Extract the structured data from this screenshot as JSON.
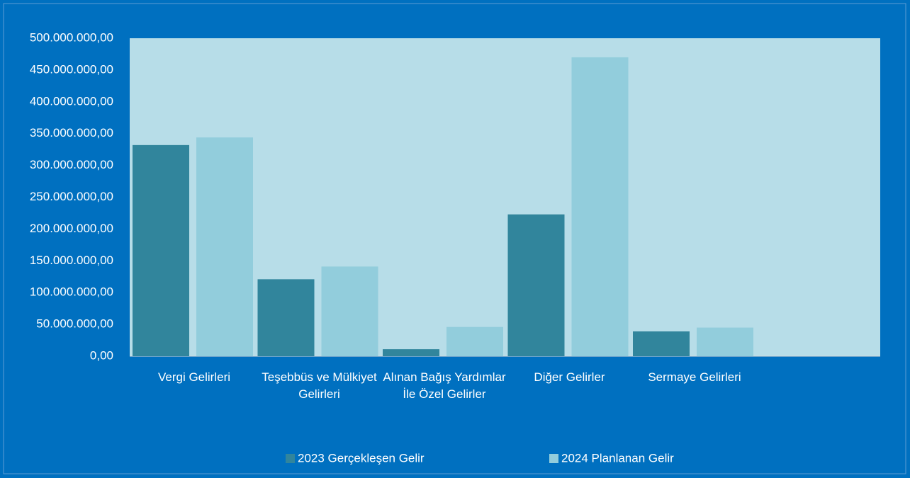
{
  "chart_data": {
    "type": "bar",
    "categories": [
      "Vergi Gelirleri",
      "Teşebbüs ve Mülkiyet Gelirleri",
      "Alınan Bağış Yardımlar İle Özel Gelirler",
      "Diğer Gelirler",
      "Sermaye Gelirleri",
      null
    ],
    "series": [
      {
        "name": "2023 Gerçekleşen Gelir",
        "color": "#31859c",
        "values": [
          332000000,
          121000000,
          11000000,
          223000000,
          39000000,
          null
        ]
      },
      {
        "name": "2024 Planlanan Gelir",
        "color": "#92cddc",
        "values": [
          344000000,
          141000000,
          46000000,
          470000000,
          45000000,
          null
        ]
      }
    ],
    "ylim": [
      0,
      500000000
    ],
    "yticks": [
      {
        "value": 0,
        "label": "0,00"
      },
      {
        "value": 50000000,
        "label": "50.000.000,00"
      },
      {
        "value": 100000000,
        "label": "100.000.000,00"
      },
      {
        "value": 150000000,
        "label": "150.000.000,00"
      },
      {
        "value": 200000000,
        "label": "200.000.000,00"
      },
      {
        "value": 250000000,
        "label": "250.000.000,00"
      },
      {
        "value": 300000000,
        "label": "300.000.000,00"
      },
      {
        "value": 350000000,
        "label": "350.000.000,00"
      },
      {
        "value": 400000000,
        "label": "400.000.000,00"
      },
      {
        "value": 450000000,
        "label": "450.000.000,00"
      },
      {
        "value": 500000000,
        "label": "500.000.000,00"
      }
    ],
    "grid": false,
    "legend": "bottom"
  }
}
